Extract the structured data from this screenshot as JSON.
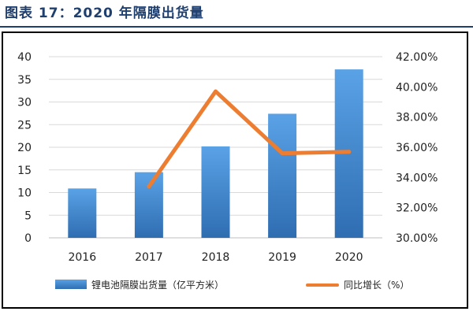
{
  "figure": {
    "title": "图表 17：2020 年隔膜出货量"
  },
  "colors": {
    "bar": "#4a90d9",
    "bar_dark": "#2f6db1",
    "line": "#ed7d31",
    "title": "#1f3f6e",
    "grid": "#d9d9d9"
  },
  "chart_data": {
    "type": "bar",
    "title": "图表 17：2020 年隔膜出货量",
    "categories": [
      "2016",
      "2017",
      "2018",
      "2019",
      "2020"
    ],
    "series": [
      {
        "name": "锂电池隔膜出货量（亿平方米）",
        "type": "bar",
        "axis": "left",
        "values": [
          10.9,
          14.5,
          20.2,
          27.4,
          37.2
        ]
      },
      {
        "name": "同比增长（%）",
        "type": "line",
        "axis": "right",
        "values": [
          null,
          33.4,
          39.7,
          35.6,
          35.7
        ]
      }
    ],
    "ylim": [
      0,
      40
    ],
    "y_ticks": [
      "0",
      "5",
      "10",
      "15",
      "20",
      "25",
      "30",
      "35",
      "40"
    ],
    "y2lim": [
      30,
      42
    ],
    "y2_ticks": [
      "30.00%",
      "32.00%",
      "34.00%",
      "36.00%",
      "38.00%",
      "40.00%",
      "42.00%"
    ],
    "grid": true,
    "legend_position": "bottom"
  }
}
